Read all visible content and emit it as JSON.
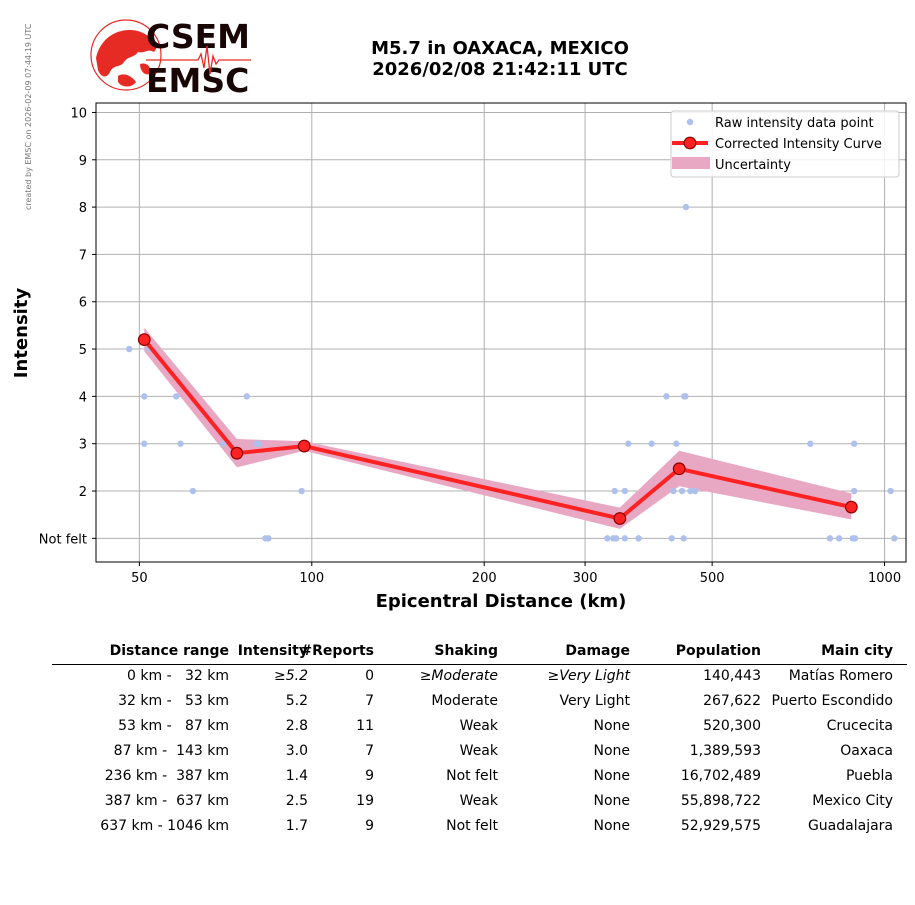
{
  "credit": "created by EMSC on 2026-02-09 07:44:19 UTC",
  "logo": {
    "line1": "CSEM",
    "line2": "EMSC",
    "brand_color": "#e62a24"
  },
  "title": {
    "line1": "M5.7 in OAXACA, MEXICO",
    "line2": "2026/02/08 21:42:11 UTC"
  },
  "colors": {
    "raw": "#aec0ec",
    "curve": "#ff2222",
    "curve_edge": "#8b0000",
    "band": "#e8a8c4",
    "grid": "#b0b0b0"
  },
  "chart_data": {
    "type": "line",
    "xscale": "log",
    "xlabel": "Epicentral Distance (km)",
    "ylabel": "Intensity",
    "xlim": [
      42,
      1090
    ],
    "ylim": [
      0.5,
      10.2
    ],
    "xticks": [
      50,
      100,
      200,
      300,
      500,
      1000
    ],
    "yticks": [
      {
        "v": 1,
        "label": "Not felt"
      },
      {
        "v": 2,
        "label": "2"
      },
      {
        "v": 3,
        "label": "3"
      },
      {
        "v": 4,
        "label": "4"
      },
      {
        "v": 5,
        "label": "5"
      },
      {
        "v": 6,
        "label": "6"
      },
      {
        "v": 7,
        "label": "7"
      },
      {
        "v": 8,
        "label": "8"
      },
      {
        "v": 9,
        "label": "9"
      },
      {
        "v": 10,
        "label": "10"
      }
    ],
    "grid": true,
    "legend_position": "top-right",
    "legend": [
      "Raw intensity data point",
      "Corrected Intensity Curve",
      "Uncertainty"
    ],
    "curve": [
      {
        "x": 51,
        "y": 5.2
      },
      {
        "x": 74,
        "y": 2.8
      },
      {
        "x": 97,
        "y": 2.95
      },
      {
        "x": 345,
        "y": 1.42
      },
      {
        "x": 438,
        "y": 2.47
      },
      {
        "x": 875,
        "y": 1.66
      }
    ],
    "band": [
      {
        "x": 51,
        "lo": 4.95,
        "hi": 5.45
      },
      {
        "x": 74,
        "lo": 2.5,
        "hi": 3.1
      },
      {
        "x": 97,
        "lo": 2.85,
        "hi": 3.05
      },
      {
        "x": 345,
        "lo": 1.2,
        "hi": 1.65
      },
      {
        "x": 438,
        "lo": 2.1,
        "hi": 2.85
      },
      {
        "x": 875,
        "lo": 1.4,
        "hi": 1.95
      }
    ],
    "raw_points": [
      {
        "x": 48,
        "y": 5
      },
      {
        "x": 51,
        "y": 4
      },
      {
        "x": 51,
        "y": 3
      },
      {
        "x": 52,
        "y": 5
      },
      {
        "x": 58,
        "y": 4
      },
      {
        "x": 59,
        "y": 3
      },
      {
        "x": 62,
        "y": 2
      },
      {
        "x": 70,
        "y": 3
      },
      {
        "x": 77,
        "y": 4
      },
      {
        "x": 80,
        "y": 3
      },
      {
        "x": 81,
        "y": 3
      },
      {
        "x": 83,
        "y": 1
      },
      {
        "x": 84,
        "y": 1
      },
      {
        "x": 96,
        "y": 2
      },
      {
        "x": 328,
        "y": 1
      },
      {
        "x": 336,
        "y": 1
      },
      {
        "x": 338,
        "y": 2
      },
      {
        "x": 340,
        "y": 1
      },
      {
        "x": 352,
        "y": 1
      },
      {
        "x": 352,
        "y": 2
      },
      {
        "x": 357,
        "y": 3
      },
      {
        "x": 372,
        "y": 1
      },
      {
        "x": 392,
        "y": 3
      },
      {
        "x": 416,
        "y": 4
      },
      {
        "x": 425,
        "y": 1
      },
      {
        "x": 428,
        "y": 2
      },
      {
        "x": 433,
        "y": 3
      },
      {
        "x": 443,
        "y": 2
      },
      {
        "x": 446,
        "y": 1
      },
      {
        "x": 447,
        "y": 4
      },
      {
        "x": 449,
        "y": 4
      },
      {
        "x": 450,
        "y": 8
      },
      {
        "x": 458,
        "y": 2
      },
      {
        "x": 467,
        "y": 2
      },
      {
        "x": 742,
        "y": 3
      },
      {
        "x": 803,
        "y": 1
      },
      {
        "x": 833,
        "y": 1
      },
      {
        "x": 880,
        "y": 1
      },
      {
        "x": 885,
        "y": 2
      },
      {
        "x": 885,
        "y": 3
      },
      {
        "x": 888,
        "y": 1
      },
      {
        "x": 1025,
        "y": 2
      },
      {
        "x": 1040,
        "y": 1
      }
    ]
  },
  "table": {
    "headers": [
      "Distance range",
      "Intensity",
      "#Reports",
      "Shaking",
      "Damage",
      "Population",
      "Main city"
    ],
    "rows": [
      {
        "range": "0 km -   32 km",
        "intensity": "≥5.2",
        "reports": "0",
        "shaking": "≥Moderate",
        "damage": "≥Very Light",
        "population": "140,443",
        "city": "Matías Romero",
        "italic": true
      },
      {
        "range": "32 km -   53 km",
        "intensity": "5.2",
        "reports": "7",
        "shaking": "Moderate",
        "damage": "Very Light",
        "population": "267,622",
        "city": "Puerto Escondido",
        "italic": false
      },
      {
        "range": "53 km -   87 km",
        "intensity": "2.8",
        "reports": "11",
        "shaking": "Weak",
        "damage": "None",
        "population": "520,300",
        "city": "Crucecita",
        "italic": false
      },
      {
        "range": "87 km -  143 km",
        "intensity": "3.0",
        "reports": "7",
        "shaking": "Weak",
        "damage": "None",
        "population": "1,389,593",
        "city": "Oaxaca",
        "italic": false
      },
      {
        "range": "236 km -  387 km",
        "intensity": "1.4",
        "reports": "9",
        "shaking": "Not felt",
        "damage": "None",
        "population": "16,702,489",
        "city": "Puebla",
        "italic": false
      },
      {
        "range": "387 km -  637 km",
        "intensity": "2.5",
        "reports": "19",
        "shaking": "Weak",
        "damage": "None",
        "population": "55,898,722",
        "city": "Mexico City",
        "italic": false
      },
      {
        "range": "637 km - 1046 km",
        "intensity": "1.7",
        "reports": "9",
        "shaking": "Not felt",
        "damage": "None",
        "population": "52,929,575",
        "city": "Guadalajara",
        "italic": false
      }
    ]
  }
}
